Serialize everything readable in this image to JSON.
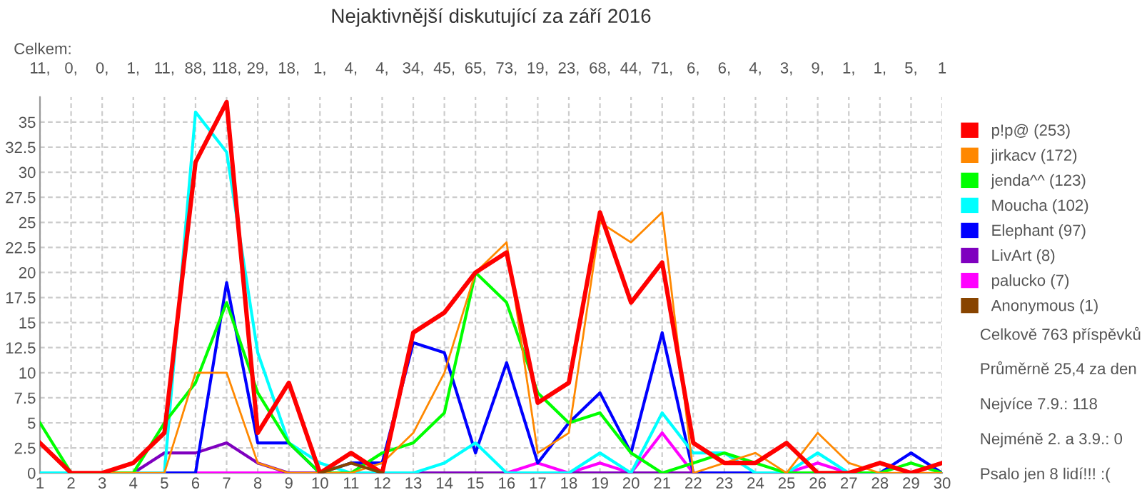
{
  "chart_data": {
    "type": "line",
    "title": "Nejaktivnější diskutující za září 2016",
    "x": [
      1,
      2,
      3,
      4,
      5,
      6,
      7,
      8,
      9,
      10,
      11,
      12,
      13,
      14,
      15,
      16,
      17,
      18,
      19,
      20,
      21,
      22,
      23,
      24,
      25,
      26,
      27,
      28,
      29,
      30
    ],
    "xlim": [
      1,
      30
    ],
    "xticks": [
      1,
      2,
      3,
      4,
      5,
      6,
      7,
      8,
      9,
      10,
      11,
      12,
      13,
      14,
      15,
      16,
      17,
      18,
      19,
      20,
      21,
      22,
      23,
      24,
      25,
      26,
      27,
      28,
      29,
      30
    ],
    "ylim": [
      0,
      37.5
    ],
    "yticks": [
      0,
      2.5,
      5,
      7.5,
      10,
      12.5,
      15,
      17.5,
      20,
      22.5,
      25,
      27.5,
      30,
      32.5,
      35
    ],
    "grid": true,
    "legend": "right",
    "line_style": "solid",
    "series": [
      {
        "name": "p!p@ (253)",
        "color": "#ff0000",
        "values": [
          3,
          0,
          0,
          1,
          4,
          31,
          37,
          4,
          9,
          0,
          2,
          0,
          14,
          16,
          20,
          22,
          7,
          9,
          26,
          17,
          21,
          3,
          1,
          1,
          3,
          0,
          0,
          1,
          0,
          1
        ]
      },
      {
        "name": "jirkacv (172)",
        "color": "#ff8800",
        "values": [
          3,
          0,
          0,
          0,
          0,
          10,
          10,
          1,
          0,
          0,
          0,
          1,
          4,
          10,
          20,
          23,
          2,
          4,
          25,
          23,
          26,
          0,
          1,
          2,
          0,
          4,
          1,
          0,
          0,
          0
        ]
      },
      {
        "name": "jenda^^ (123)",
        "color": "#00ff00",
        "values": [
          5,
          0,
          0,
          0,
          5,
          9,
          17,
          8,
          3,
          0,
          0,
          2,
          3,
          6,
          20,
          17,
          8,
          5,
          6,
          2,
          0,
          1,
          2,
          1,
          0,
          0,
          0,
          0,
          1,
          0
        ]
      },
      {
        "name": "Moucha (102)",
        "color": "#00ffff",
        "values": [
          0,
          0,
          0,
          0,
          0,
          36,
          32,
          12,
          3,
          1,
          0,
          0,
          0,
          1,
          3,
          0,
          0,
          0,
          2,
          0,
          6,
          2,
          2,
          0,
          0,
          2,
          0,
          0,
          null,
          null
        ]
      },
      {
        "name": "Elephant (97)",
        "color": "#0000ff",
        "values": [
          null,
          null,
          null,
          0,
          0,
          0,
          19,
          3,
          3,
          0,
          1,
          1,
          13,
          12,
          2,
          11,
          1,
          5,
          8,
          2,
          14,
          0,
          0,
          0,
          0,
          0,
          0,
          0,
          2,
          0
        ]
      },
      {
        "name": "LivArt (8)",
        "color": "#7f00bf",
        "values": [
          null,
          null,
          0,
          0,
          2,
          2,
          3,
          1,
          0,
          0,
          0,
          0,
          0,
          0,
          0,
          0,
          0,
          0,
          0,
          0,
          0,
          0,
          0,
          null,
          null,
          null,
          null,
          null,
          null,
          null
        ]
      },
      {
        "name": "palucko (7)",
        "color": "#ff00ff",
        "values": [
          null,
          null,
          null,
          null,
          null,
          0,
          0,
          0,
          0,
          null,
          null,
          null,
          null,
          null,
          null,
          0,
          1,
          0,
          1,
          0,
          4,
          0,
          null,
          null,
          0,
          1,
          0,
          null,
          null,
          null
        ]
      },
      {
        "name": "Anonymous (1)",
        "color": "#884400",
        "values": [
          null,
          null,
          null,
          null,
          null,
          null,
          null,
          null,
          null,
          0,
          1,
          0,
          null,
          null,
          null,
          null,
          null,
          null,
          null,
          null,
          null,
          null,
          null,
          null,
          null,
          null,
          null,
          null,
          null,
          null
        ]
      }
    ],
    "annotations": [
      "Celkem:",
      "11,",
      "0,",
      "0,",
      "1,",
      "11,",
      "88,",
      "118,",
      "29,",
      "18,",
      "1,",
      "4,",
      "4,",
      "34,",
      "45,",
      "65,",
      "73,",
      "19,",
      "23,",
      "68,",
      "44,",
      "71,",
      "6,",
      "6,",
      "4,",
      "3,",
      "9,",
      "1,",
      "1,",
      "5,",
      "1",
      "Celkově 763 příspěvků",
      "Průměrně 25,4 za den",
      "Nejvíce 7.9.: 118",
      "Nejméně 2. a 3.9.: 0",
      "Psalo jen 8 lidí!!! :("
    ]
  }
}
